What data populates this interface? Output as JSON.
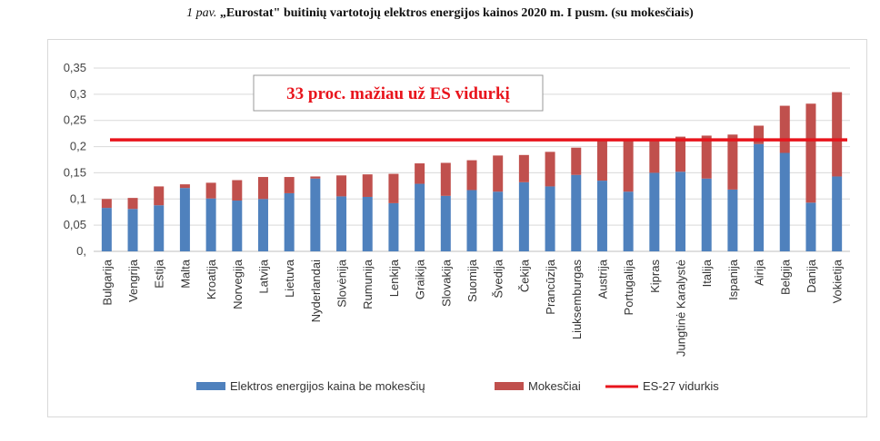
{
  "caption": {
    "prefix": "1 pav.",
    "title": "„Eurostat\" buitinių vartotojų elektros energijos kainos 2020 m. I pusm. (su mokesčiais)"
  },
  "colors": {
    "base": "#4f81bd",
    "tax": "#c0504d",
    "average_line": "#e8141c",
    "annotation_text": "#e8141c",
    "grid": "#d9d9d9",
    "axis": "#bfbfbf"
  },
  "chart_data": {
    "type": "bar",
    "stacked": true,
    "title": "",
    "xlabel": "",
    "ylabel": "",
    "ylim": [
      0,
      0.35
    ],
    "yticks": [
      0,
      0.05,
      0.1,
      0.15,
      0.2,
      0.25,
      0.3,
      0.35
    ],
    "ytick_labels": [
      "0,",
      "0,05",
      "0,1",
      "0,15",
      "0,2",
      "0,25",
      "0,3",
      "0,35"
    ],
    "grid": true,
    "categories": [
      "Bulgarija",
      "Vengrija",
      "Estija",
      "Malta",
      "Kroatija",
      "Norvegija",
      "Latvija",
      "Lietuva",
      "Nyderlandai",
      "Slovėnija",
      "Rumunija",
      "Lenkija",
      "Graikija",
      "Slovakija",
      "Suomija",
      "Švedija",
      "Čekija",
      "Prancūzija",
      "Liuksemburgas",
      "Austrija",
      "Portugalija",
      "Kipras",
      "Jungtinė Karalystė",
      "Italija",
      "Ispanija",
      "Airija",
      "Belgija",
      "Danija",
      "Vokietija"
    ],
    "series": [
      {
        "name": "Elektros energijos kaina be mokesčių",
        "color": "#4f81bd",
        "values": [
          0.083,
          0.081,
          0.088,
          0.121,
          0.101,
          0.097,
          0.1,
          0.111,
          0.139,
          0.105,
          0.104,
          0.092,
          0.129,
          0.106,
          0.117,
          0.114,
          0.132,
          0.124,
          0.146,
          0.135,
          0.114,
          0.15,
          0.152,
          0.139,
          0.118,
          0.205,
          0.188,
          0.093,
          0.143
        ]
      },
      {
        "name": "Mokesčiai",
        "color": "#c0504d",
        "values": [
          0.017,
          0.021,
          0.036,
          0.007,
          0.03,
          0.039,
          0.042,
          0.031,
          0.004,
          0.04,
          0.043,
          0.056,
          0.039,
          0.063,
          0.057,
          0.069,
          0.052,
          0.066,
          0.052,
          0.077,
          0.098,
          0.063,
          0.067,
          0.082,
          0.105,
          0.035,
          0.09,
          0.189,
          0.161
        ]
      }
    ],
    "reference_line": {
      "name": "ES-27 vidurkis",
      "value": 0.213,
      "color": "#e8141c"
    },
    "annotation": "33 proc. mažiau už ES vidurkį",
    "legend": [
      {
        "label": "Elektros energijos kaina be mokesčių",
        "type": "box",
        "color": "#4f81bd"
      },
      {
        "label": "Mokesčiai",
        "type": "box",
        "color": "#c0504d"
      },
      {
        "label": "ES-27 vidurkis",
        "type": "line",
        "color": "#e8141c"
      }
    ],
    "legend_position": "bottom"
  }
}
